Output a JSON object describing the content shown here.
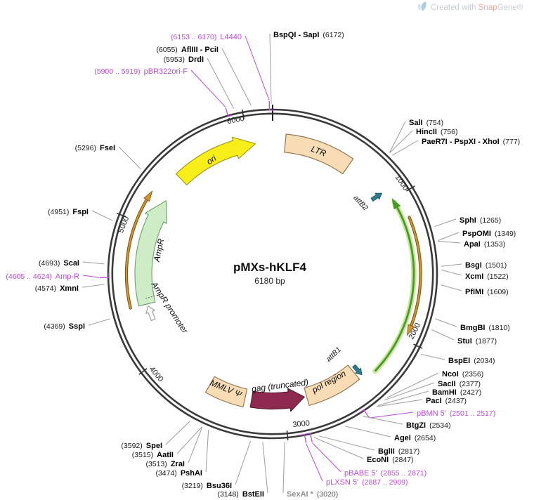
{
  "watermark": {
    "created_with": "Created with ",
    "brand_snap": "Snap",
    "brand_gene": "Gene®"
  },
  "plasmid": {
    "name": "pMXs-hKLF4",
    "size": "6180 bp",
    "length_bp": 6180
  },
  "tick_labels": [
    "1000",
    "2000",
    "3000",
    "4000",
    "5000",
    "6000"
  ],
  "features": [
    {
      "id": "ori",
      "label": "ori",
      "fill": "#F8EE19",
      "stroke": "#9C941F"
    },
    {
      "id": "ltr",
      "label": "LTR",
      "fill": "#F7DCB6",
      "stroke": "#8C6D47"
    },
    {
      "id": "attB2",
      "label": "attB2",
      "fill": "#2F7D8E",
      "stroke": "#14505E"
    },
    {
      "id": "cds",
      "label": "",
      "stroke": "#4A9A28",
      "halo": "#C9E89E"
    },
    {
      "id": "orfR",
      "label": "",
      "stroke": "#D3962E",
      "edge": "#74510F"
    },
    {
      "id": "orfL",
      "label": "",
      "stroke": "#D3962E",
      "edge": "#74510F"
    },
    {
      "id": "attB1",
      "label": "attB1",
      "fill": "#2F7D8E",
      "stroke": "#14505E"
    },
    {
      "id": "pol",
      "label": "pol region",
      "fill": "#F7DCB6",
      "stroke": "#8C6D47"
    },
    {
      "id": "gag",
      "label": "gag (truncated)",
      "fill": "#8E2A50",
      "stroke": "#571832"
    },
    {
      "id": "mmlv",
      "label": "MMLV Ψ",
      "fill": "#F7DCB6",
      "stroke": "#8C6D47"
    },
    {
      "id": "ampr",
      "label": "AmpR",
      "fill": "#CEEDC6",
      "stroke": "#6B9E6B"
    },
    {
      "id": "amprProm",
      "label": "AmpR promoter",
      "fill": "#FFFFFF",
      "stroke": "#909090"
    }
  ],
  "sites": [
    {
      "name": "BspQI - SapI",
      "pos": "(6172)",
      "bp": 6172,
      "kind": "enzyme",
      "side": "R"
    },
    {
      "name": "SalI",
      "pos": "(754)",
      "bp": 754,
      "kind": "enzyme",
      "side": "R"
    },
    {
      "name": "HincII",
      "pos": "(756)",
      "bp": 756,
      "kind": "enzyme",
      "side": "R"
    },
    {
      "name": "PaeR7I - PspXI - XhoI",
      "pos": "(777)",
      "bp": 777,
      "kind": "enzyme",
      "side": "R"
    },
    {
      "name": "SphI",
      "pos": "(1265)",
      "bp": 1265,
      "kind": "enzyme",
      "side": "R"
    },
    {
      "name": "PspOMI",
      "pos": "(1349)",
      "bp": 1349,
      "kind": "enzyme",
      "side": "R"
    },
    {
      "name": "ApaI",
      "pos": "(1353)",
      "bp": 1353,
      "kind": "enzyme",
      "side": "R"
    },
    {
      "name": "BsgI",
      "pos": "(1501)",
      "bp": 1501,
      "kind": "enzyme",
      "side": "R"
    },
    {
      "name": "XcmI",
      "pos": "(1522)",
      "bp": 1522,
      "kind": "enzyme",
      "side": "R"
    },
    {
      "name": "PflMI",
      "pos": "(1609)",
      "bp": 1609,
      "kind": "enzyme",
      "side": "R"
    },
    {
      "name": "BmgBI",
      "pos": "(1810)",
      "bp": 1810,
      "kind": "enzyme",
      "side": "R"
    },
    {
      "name": "StuI",
      "pos": "(1877)",
      "bp": 1877,
      "kind": "enzyme",
      "side": "R"
    },
    {
      "name": "BspEI",
      "pos": "(2034)",
      "bp": 2034,
      "kind": "enzyme",
      "side": "R"
    },
    {
      "name": "NcoI",
      "pos": "(2356)",
      "bp": 2356,
      "kind": "enzyme",
      "side": "R"
    },
    {
      "name": "SacII",
      "pos": "(2377)",
      "bp": 2377,
      "kind": "enzyme",
      "side": "R"
    },
    {
      "name": "BamHI",
      "pos": "(2427)",
      "bp": 2427,
      "kind": "enzyme",
      "side": "R"
    },
    {
      "name": "PacI",
      "pos": "(2437)",
      "bp": 2437,
      "kind": "enzyme",
      "side": "R"
    },
    {
      "name": "pBMN 5'",
      "pos": "(2501 .. 2517)",
      "bp": 2509,
      "kind": "primer",
      "side": "R"
    },
    {
      "name": "BtgZI",
      "pos": "(2534)",
      "bp": 2534,
      "kind": "enzyme",
      "side": "R"
    },
    {
      "name": "AgeI",
      "pos": "(2654)",
      "bp": 2654,
      "kind": "enzyme",
      "side": "R"
    },
    {
      "name": "BglII",
      "pos": "(2817)",
      "bp": 2817,
      "kind": "enzyme",
      "side": "R"
    },
    {
      "name": "EcoNI",
      "pos": "(2847)",
      "bp": 2847,
      "kind": "enzyme",
      "side": "R"
    },
    {
      "name": "pBABE 5'",
      "pos": "(2855 .. 2871)",
      "bp": 2863,
      "kind": "primer",
      "side": "R"
    },
    {
      "name": "pLXSN 5'",
      "pos": "(2887 .. 2909)",
      "bp": 2898,
      "kind": "primer",
      "side": "R"
    },
    {
      "name": "SexAI *",
      "pos": "(3020)",
      "bp": 3020,
      "kind": "enzyme-masked",
      "side": "R"
    },
    {
      "name": "BstEII",
      "pos": "(3148)",
      "bp": 3148,
      "kind": "enzyme",
      "side": "L"
    },
    {
      "name": "Bsu36I",
      "pos": "(3219)",
      "bp": 3219,
      "kind": "enzyme",
      "side": "L"
    },
    {
      "name": "PshAI",
      "pos": "(3474)",
      "bp": 3474,
      "kind": "enzyme",
      "side": "L"
    },
    {
      "name": "ZraI",
      "pos": "(3513)",
      "bp": 3513,
      "kind": "enzyme",
      "side": "L"
    },
    {
      "name": "AatII",
      "pos": "(3515)",
      "bp": 3515,
      "kind": "enzyme",
      "side": "L"
    },
    {
      "name": "SpeI",
      "pos": "(3592)",
      "bp": 3592,
      "kind": "enzyme",
      "side": "L"
    },
    {
      "name": "SspI",
      "pos": "(4369)",
      "bp": 4369,
      "kind": "enzyme",
      "side": "L"
    },
    {
      "name": "XmnI",
      "pos": "(4574)",
      "bp": 4574,
      "kind": "enzyme",
      "side": "L"
    },
    {
      "name": "Amp-R",
      "pos": "(4605 .. 4624)",
      "bp": 4614,
      "kind": "primer",
      "side": "L"
    },
    {
      "name": "ScaI",
      "pos": "(4693)",
      "bp": 4693,
      "kind": "enzyme",
      "side": "L"
    },
    {
      "name": "FspI",
      "pos": "(4951)",
      "bp": 4951,
      "kind": "enzyme",
      "side": "L"
    },
    {
      "name": "FseI",
      "pos": "(5296)",
      "bp": 5296,
      "kind": "enzyme",
      "side": "L"
    },
    {
      "name": "DrdI",
      "pos": "(5953)",
      "bp": 5953,
      "kind": "enzyme",
      "side": "L"
    },
    {
      "name": "AflIII - PciI",
      "pos": "(6055)",
      "bp": 6055,
      "kind": "enzyme",
      "side": "L"
    },
    {
      "name": "L4440",
      "pos": "(6153 .. 6170)",
      "bp": 6161,
      "kind": "primer",
      "side": "L"
    },
    {
      "name": "pBR322ori-F",
      "pos": "(5900 .. 5919)",
      "bp": 5909,
      "kind": "primer",
      "side": "L"
    }
  ],
  "colors": {
    "primer": "#BB4BD2",
    "leader": "#9C9C9C",
    "ring": "#3A3A3A",
    "masked_site": "#8f8f8f"
  }
}
